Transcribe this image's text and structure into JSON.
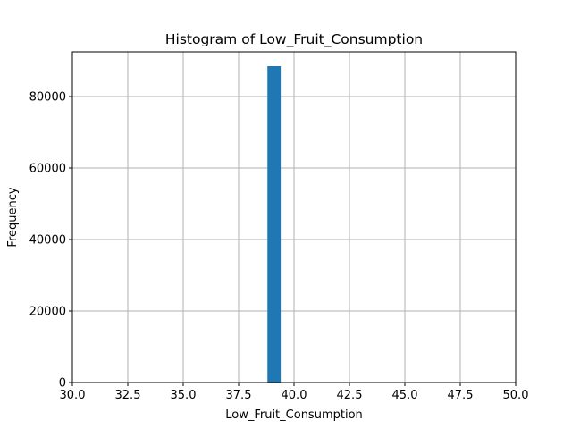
{
  "chart_data": {
    "type": "bar",
    "title": "Histogram of Low_Fruit_Consumption",
    "xlabel": "Low_Fruit_Consumption",
    "ylabel": "Frequency",
    "xlim": [
      30.0,
      50.0
    ],
    "ylim": [
      0,
      92500
    ],
    "xticks": [
      30.0,
      32.5,
      35.0,
      37.5,
      40.0,
      42.5,
      45.0,
      47.5,
      50.0
    ],
    "xtick_labels": [
      "30.0",
      "32.5",
      "35.0",
      "37.5",
      "40.0",
      "42.5",
      "45.0",
      "47.5",
      "50.0"
    ],
    "yticks": [
      0,
      20000,
      40000,
      60000,
      80000
    ],
    "ytick_labels": [
      "0",
      "20000",
      "40000",
      "60000",
      "80000"
    ],
    "grid": true,
    "bar_color": "#1f77b4",
    "bins": [
      {
        "x_start": 38.8,
        "x_end": 39.4,
        "count": 88500
      }
    ]
  }
}
